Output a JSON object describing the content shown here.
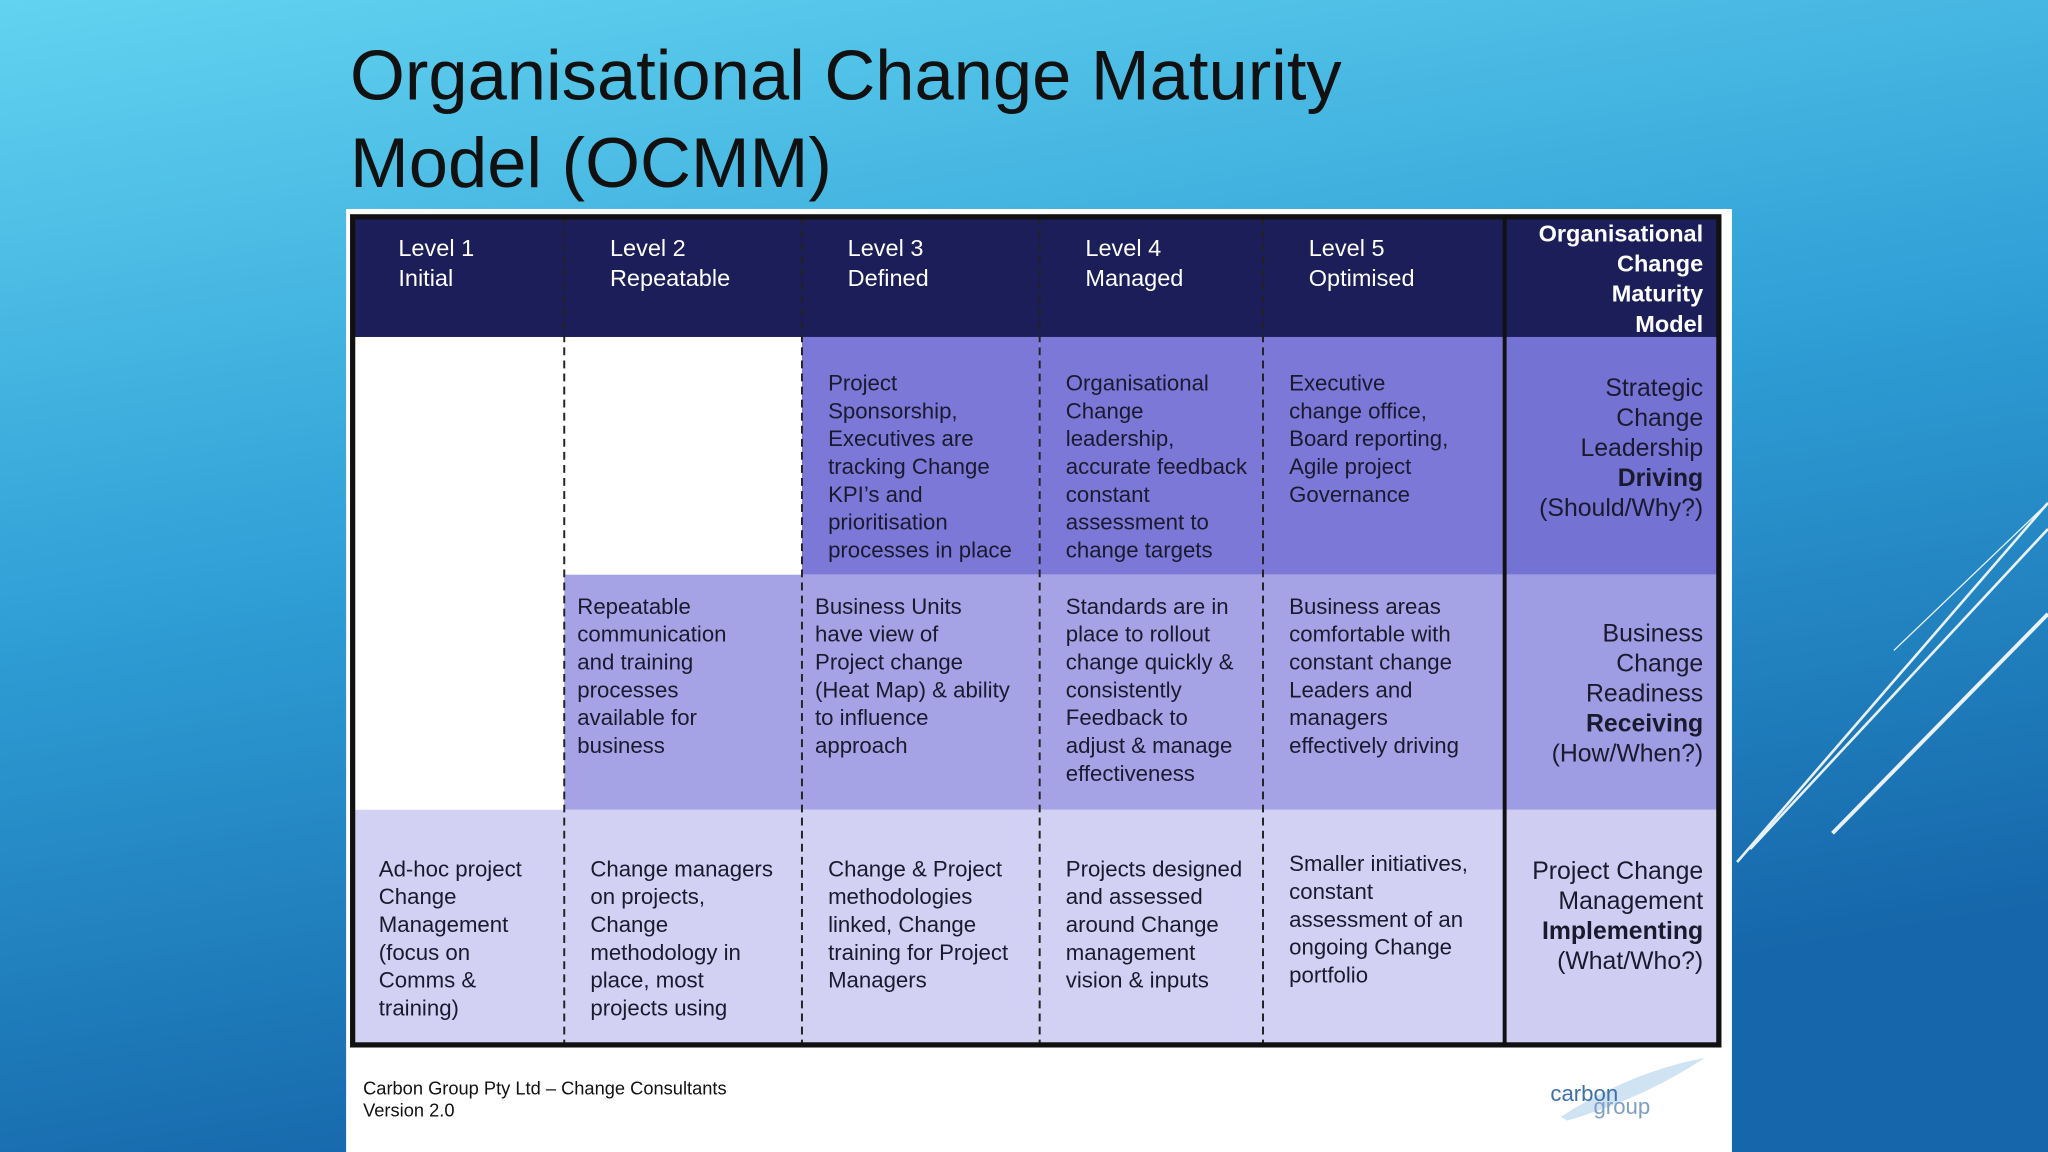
{
  "title": [
    "Organisational Change Maturity",
    "Model (OCMM)"
  ],
  "table": {
    "header": [
      [
        "Level 1",
        "Initial"
      ],
      [
        "Level 2",
        "Repeatable"
      ],
      [
        "Level 3",
        "Defined"
      ],
      [
        "Level 4",
        "Managed"
      ],
      [
        "Level 5",
        "Optimised"
      ]
    ],
    "side_header": [
      "Organisational",
      "Change",
      "Maturity",
      "Model"
    ],
    "rows": [
      {
        "cells": [
          [
            "Project",
            "Sponsorship,",
            "Executives are",
            "tracking Change",
            "KPI’s and",
            "prioritisation",
            "processes in place"
          ],
          [
            "Organisational",
            "Change",
            "leadership,",
            "accurate feedback",
            "constant",
            "assessment to",
            "change targets"
          ],
          [
            "Executive",
            "change  office,",
            "Board reporting,",
            "Agile  project",
            "Governance"
          ]
        ],
        "side": {
          "lines_before": [
            "Strategic",
            "Change",
            "Leadership"
          ],
          "emphasis": "Driving",
          "lines_after": [
            "(Should/Why?)"
          ]
        }
      },
      {
        "cells": [
          [
            "Repeatable",
            "communication",
            "and training",
            "processes",
            "available for",
            "business"
          ],
          [
            "Business Units",
            "have view of",
            "Project change",
            "(Heat Map) & ability",
            "to influence",
            "approach"
          ],
          [
            "Standards are in",
            "place to rollout",
            "change  quickly &",
            "consistently",
            "Feedback to",
            "adjust & manage",
            "effectiveness"
          ],
          [
            "Business areas",
            "comfortable with",
            "constant change",
            "Leaders and",
            "managers",
            "effectively driving"
          ]
        ],
        "side": {
          "lines_before": [
            "Business",
            "Change",
            "Readiness"
          ],
          "emphasis": "Receiving",
          "lines_after": [
            "(How/When?)"
          ]
        }
      },
      {
        "cells": [
          [
            "Ad-hoc project",
            "Change",
            "Management",
            "(focus on",
            "Comms &",
            "training)"
          ],
          [
            "Change managers",
            "on projects,",
            "Change",
            "methodology in",
            "place, most",
            "projects using"
          ],
          [
            "Change & Project",
            "methodologies",
            "linked, Change",
            "training  for Project",
            "Managers"
          ],
          [
            "Projects designed",
            "and assessed",
            "around Change",
            "management",
            "vision & inputs"
          ],
          [
            "Smaller initiatives,",
            "constant",
            "assessment  of an",
            "ongoing Change",
            "portfolio"
          ]
        ],
        "side": {
          "lines_before": [
            "Project Change",
            "Management"
          ],
          "emphasis": "Implementing",
          "lines_after": [
            "(What/Who?)"
          ]
        }
      }
    ]
  },
  "footer": [
    "Carbon Group Pty Ltd – Change Consultants",
    "Version 2.0"
  ],
  "logo": [
    "carbon",
    "group"
  ]
}
